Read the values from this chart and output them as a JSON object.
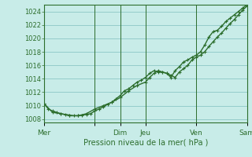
{
  "xlabel": "Pression niveau de la mer( hPa )",
  "bg_color": "#c8ece8",
  "grid_color": "#7fbfbf",
  "line_color": "#2d6e2d",
  "border_color": "#2d6e2d",
  "ylim": [
    1007.5,
    1025.0
  ],
  "yticks": [
    1008,
    1010,
    1012,
    1014,
    1016,
    1018,
    1020,
    1022,
    1024
  ],
  "xlim": [
    0,
    96
  ],
  "xtick_positions": [
    0,
    24,
    36,
    48,
    72,
    96
  ],
  "xtick_labels": [
    "Mer",
    "",
    "Dim",
    "Jeu",
    "Ven",
    "Sam"
  ],
  "vline_positions": [
    0,
    24,
    36,
    48,
    72,
    96
  ],
  "line1_x": [
    0,
    2,
    4,
    6,
    8,
    10,
    12,
    14,
    16,
    18,
    20,
    22,
    24,
    26,
    28,
    30,
    32,
    34,
    36,
    38,
    40,
    42,
    44,
    46,
    48,
    50,
    52,
    54,
    56,
    58,
    60,
    62,
    64,
    66,
    68,
    70,
    72,
    74,
    76,
    78,
    80,
    82,
    84,
    86,
    88,
    90,
    92,
    94,
    96
  ],
  "line1_y": [
    1010.3,
    1009.5,
    1009.2,
    1009.0,
    1008.8,
    1008.7,
    1008.6,
    1008.5,
    1008.5,
    1008.6,
    1008.7,
    1008.8,
    1009.2,
    1009.5,
    1009.8,
    1010.2,
    1010.5,
    1011.0,
    1011.5,
    1012.2,
    1012.5,
    1013.0,
    1013.5,
    1013.8,
    1014.2,
    1014.8,
    1015.2,
    1015.0,
    1015.0,
    1014.8,
    1014.5,
    1014.2,
    1015.0,
    1015.5,
    1016.0,
    1016.8,
    1017.2,
    1017.5,
    1018.0,
    1018.8,
    1019.5,
    1020.2,
    1020.8,
    1021.5,
    1022.2,
    1022.8,
    1023.5,
    1024.2,
    1024.8
  ],
  "line2_x": [
    0,
    4,
    8,
    12,
    16,
    20,
    24,
    28,
    32,
    36,
    40,
    44,
    48,
    50,
    52,
    54,
    56,
    58,
    60,
    62,
    64,
    66,
    68,
    70,
    72,
    74,
    76,
    78,
    80,
    82,
    84,
    86,
    88,
    90,
    92,
    94,
    96
  ],
  "line2_y": [
    1010.3,
    1009.0,
    1008.8,
    1008.5,
    1008.5,
    1008.8,
    1009.5,
    1010.0,
    1010.5,
    1011.2,
    1012.2,
    1013.0,
    1013.5,
    1014.2,
    1014.8,
    1015.2,
    1015.0,
    1014.8,
    1014.2,
    1015.2,
    1015.8,
    1016.5,
    1016.8,
    1017.2,
    1017.5,
    1018.0,
    1019.0,
    1020.2,
    1021.0,
    1021.2,
    1021.8,
    1022.5,
    1023.0,
    1023.5,
    1024.0,
    1024.5,
    1025.0
  ],
  "marker_size": 3.5,
  "linewidth": 1.0
}
